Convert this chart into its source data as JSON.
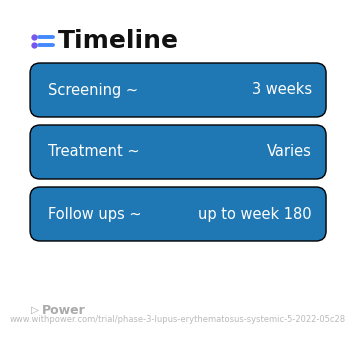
{
  "title": "Timeline",
  "background_color": "#ffffff",
  "rows": [
    {
      "left_label": "Screening ~",
      "right_label": "3 weeks",
      "color_left": "#4d9fff",
      "color_right": "#5577ee"
    },
    {
      "left_label": "Treatment ~",
      "right_label": "Varies",
      "color_left": "#6677ee",
      "color_right": "#9966cc"
    },
    {
      "left_label": "Follow ups ~",
      "right_label": "up to week 180",
      "color_left": "#8866cc",
      "color_right": "#bb66bb"
    }
  ],
  "footer_logo_text": "Power",
  "footer_url": "www.withpower.com/trial/phase-3-lupus-erythematosus-systemic-5-2022-05c28",
  "title_fontsize": 18,
  "row_fontsize": 10.5,
  "footer_fontsize": 6.0,
  "icon_color": "#7755ee",
  "icon_color2": "#4488ff"
}
